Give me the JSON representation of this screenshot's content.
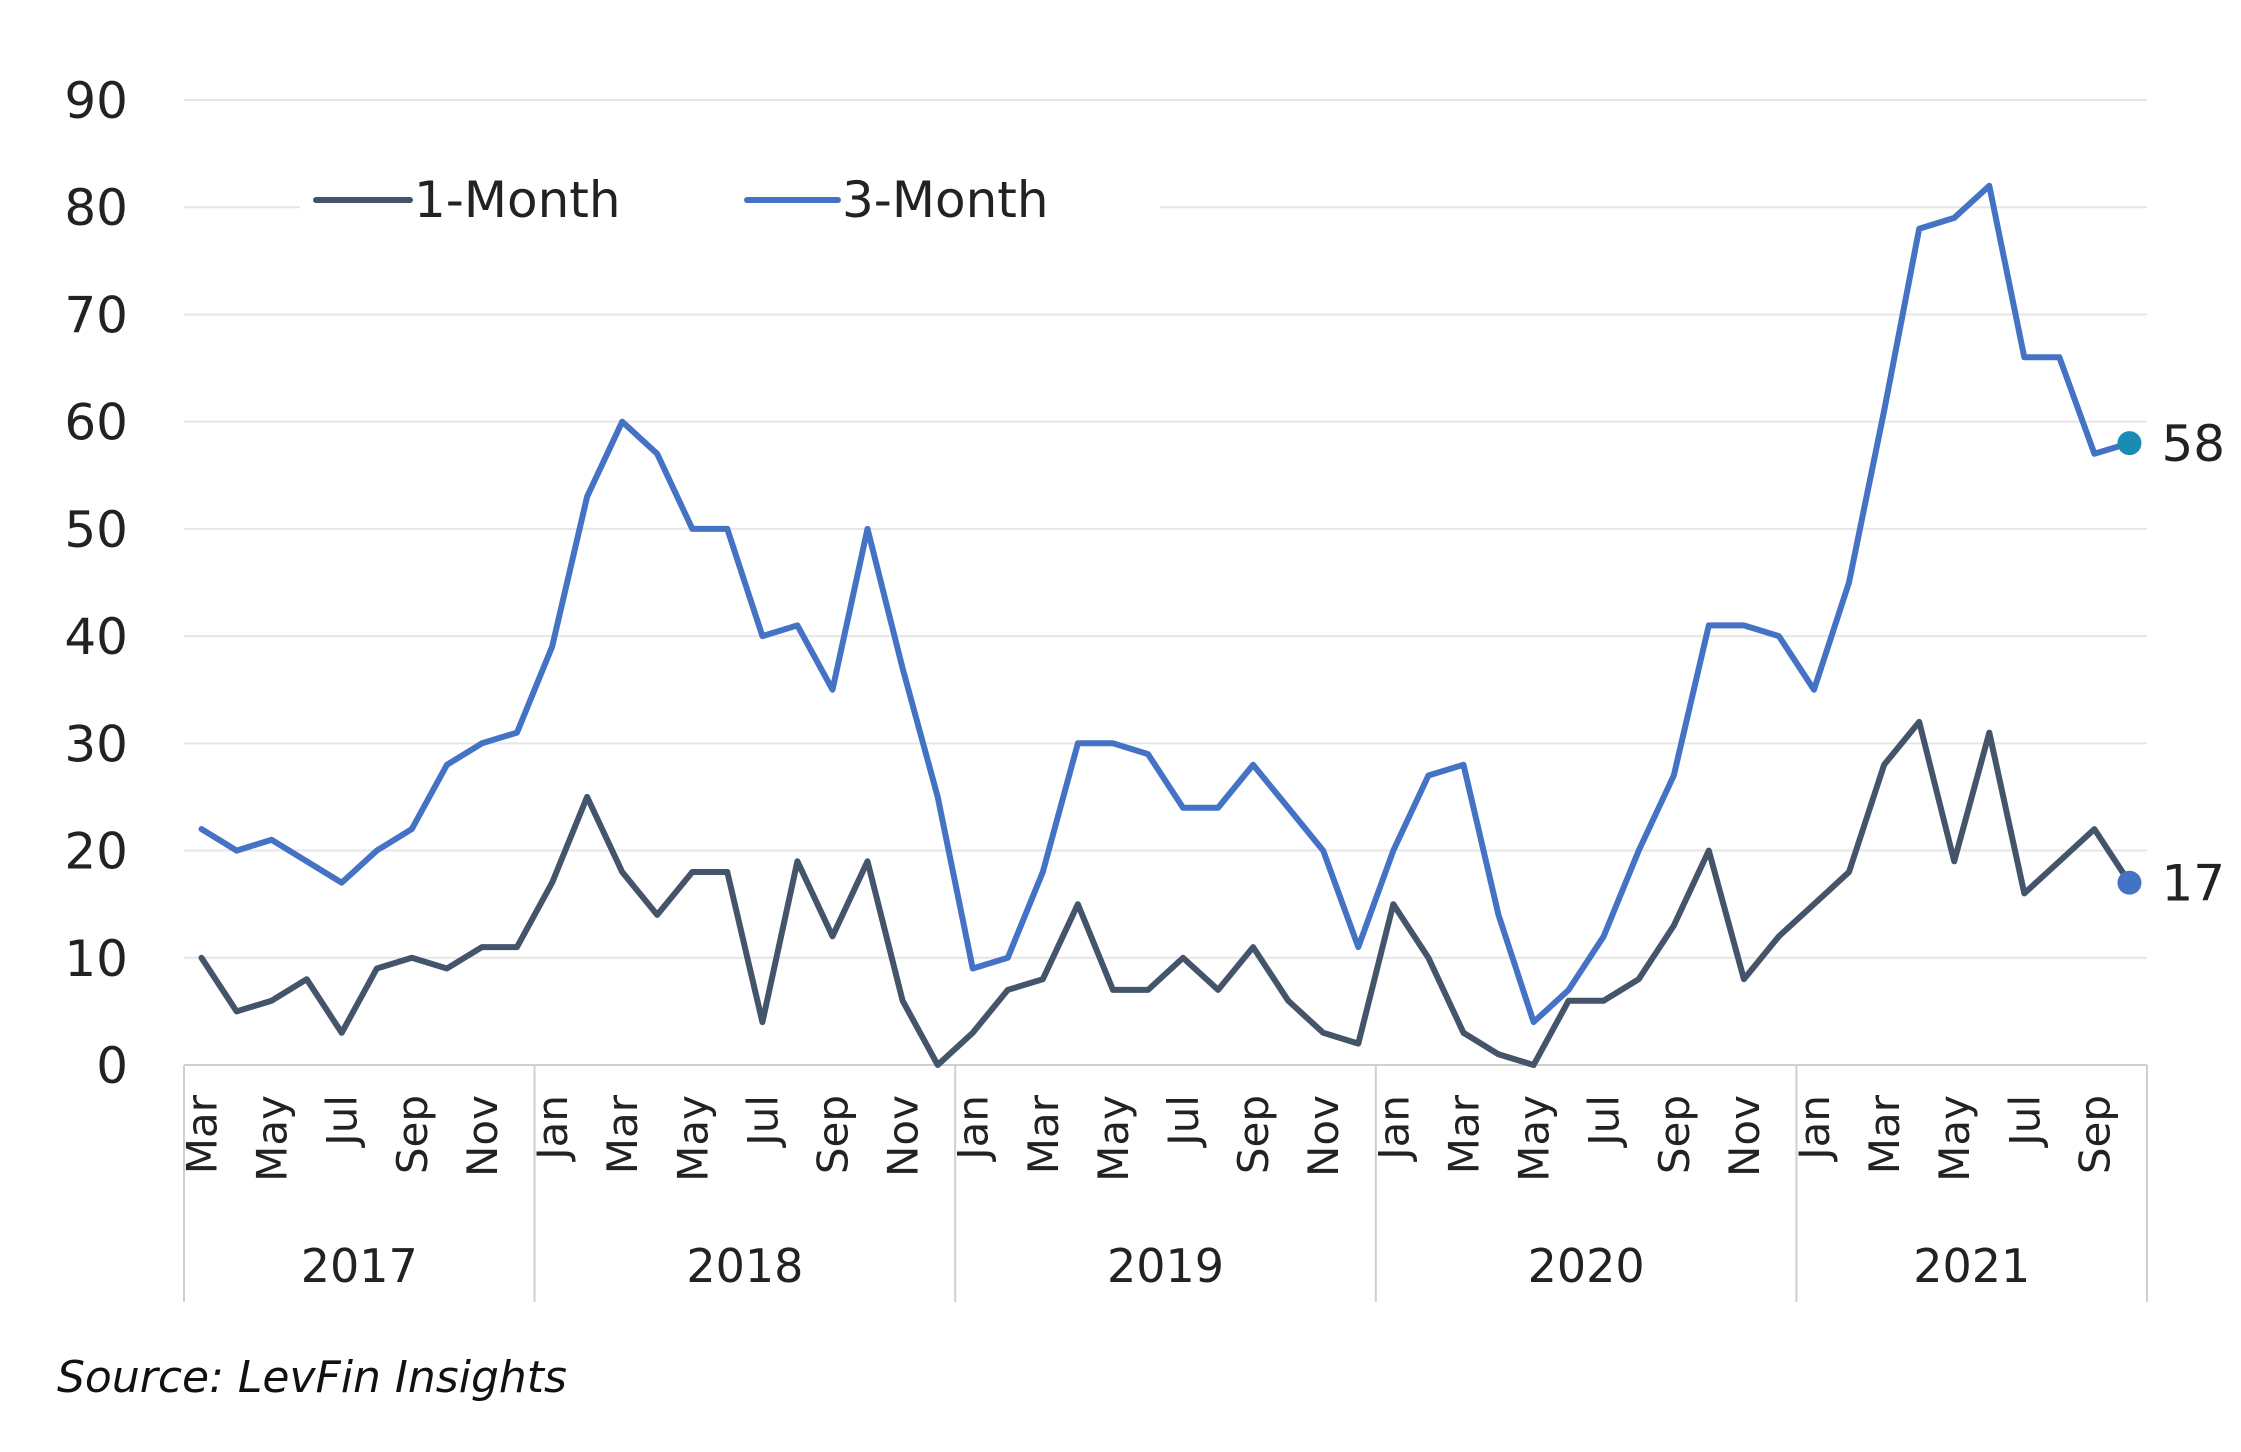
{
  "chart_data": {
    "type": "line",
    "title": "",
    "xlabel": "",
    "ylabel": "",
    "ylim": [
      0,
      90
    ],
    "yticks": [
      0,
      10,
      20,
      30,
      40,
      50,
      60,
      70,
      80,
      90
    ],
    "grid": true,
    "legend_position": "top-left",
    "x": [
      "Mar 2017",
      "Apr 2017",
      "May 2017",
      "Jun 2017",
      "Jul 2017",
      "Aug 2017",
      "Sep 2017",
      "Oct 2017",
      "Nov 2017",
      "Dec 2017",
      "Jan 2018",
      "Feb 2018",
      "Mar 2018",
      "Apr 2018",
      "May 2018",
      "Jun 2018",
      "Jul 2018",
      "Aug 2018",
      "Sep 2018",
      "Oct 2018",
      "Nov 2018",
      "Dec 2018",
      "Jan 2019",
      "Feb 2019",
      "Mar 2019",
      "Apr 2019",
      "May 2019",
      "Jun 2019",
      "Jul 2019",
      "Aug 2019",
      "Sep 2019",
      "Oct 2019",
      "Nov 2019",
      "Dec 2019",
      "Jan 2020",
      "Feb 2020",
      "Mar 2020",
      "Apr 2020",
      "May 2020",
      "Jun 2020",
      "Jul 2020",
      "Aug 2020",
      "Sep 2020",
      "Oct 2020",
      "Nov 2020",
      "Dec 2020",
      "Jan 2021",
      "Feb 2021",
      "Mar 2021",
      "Apr 2021",
      "May 2021",
      "Jun 2021",
      "Jul 2021",
      "Aug 2021",
      "Sep 2021",
      "Oct 2021"
    ],
    "month_tick_labels": [
      "Mar",
      "",
      "May",
      "",
      "Jul",
      "",
      "Sep",
      "",
      "Nov",
      "",
      "Jan",
      "",
      "Mar",
      "",
      "May",
      "",
      "Jul",
      "",
      "Sep",
      "",
      "Nov",
      "",
      "Jan",
      "",
      "Mar",
      "",
      "May",
      "",
      "Jul",
      "",
      "Sep",
      "",
      "Nov",
      "",
      "Jan",
      "",
      "Mar",
      "",
      "May",
      "",
      "Jul",
      "",
      "Sep",
      "",
      "Nov",
      "",
      "Jan",
      "",
      "Mar",
      "",
      "May",
      "",
      "Jul",
      "",
      "Sep",
      ""
    ],
    "year_groups": [
      {
        "label": "2017",
        "count": 10
      },
      {
        "label": "2018",
        "count": 12
      },
      {
        "label": "2019",
        "count": 12
      },
      {
        "label": "2020",
        "count": 12
      },
      {
        "label": "2021",
        "count": 10
      }
    ],
    "series": [
      {
        "name": "1-Month",
        "color": "#44546a",
        "values": [
          10,
          5,
          6,
          8,
          3,
          9,
          10,
          9,
          11,
          11,
          17,
          25,
          18,
          14,
          18,
          18,
          4,
          19,
          12,
          19,
          6,
          0,
          3,
          7,
          8,
          15,
          7,
          7,
          10,
          7,
          11,
          6,
          3,
          2,
          15,
          10,
          3,
          1,
          0,
          6,
          6,
          8,
          13,
          20,
          8,
          12,
          15,
          18,
          28,
          32,
          19,
          31,
          16,
          19,
          22,
          17
        ],
        "end_label": "17",
        "end_marker_color": "#4472c4"
      },
      {
        "name": "3-Month",
        "color": "#4472c4",
        "values": [
          22,
          20,
          21,
          19,
          17,
          20,
          22,
          28,
          30,
          31,
          39,
          53,
          60,
          57,
          50,
          50,
          40,
          41,
          35,
          50,
          37,
          25,
          9,
          10,
          18,
          30,
          30,
          29,
          24,
          24,
          28,
          24,
          20,
          11,
          20,
          27,
          28,
          14,
          4,
          7,
          12,
          20,
          27,
          41,
          41,
          40,
          35,
          45,
          61,
          78,
          79,
          82,
          66,
          66,
          57,
          58
        ],
        "end_label": "58",
        "end_marker_color": "#1a8cb4"
      }
    ]
  },
  "source": "Source: LevFin Insights"
}
